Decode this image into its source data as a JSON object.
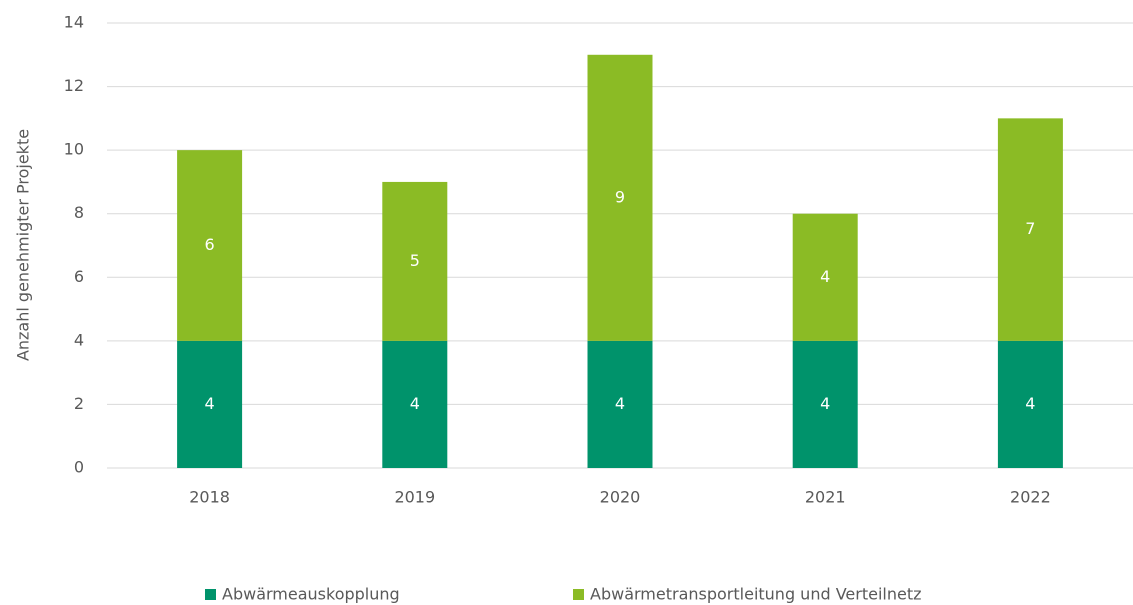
{
  "chart_data": {
    "type": "stacked_bar",
    "y_label": "Anzahl genehmigter Projekte",
    "categories": [
      "2018",
      "2019",
      "2020",
      "2021",
      "2022"
    ],
    "series": [
      {
        "name": "Abwärmeauskopplung",
        "color": "#00936b",
        "values": [
          4,
          4,
          4,
          4,
          4
        ]
      },
      {
        "name": "Abwärmetransportleitung und Verteilnetz",
        "color": "#8bbb25",
        "values": [
          6,
          5,
          9,
          4,
          7
        ]
      }
    ],
    "ylim": [
      0,
      14
    ],
    "yticks": [
      0,
      2,
      4,
      6,
      8,
      10,
      12,
      14
    ],
    "grid": true,
    "legend": "bottom"
  }
}
